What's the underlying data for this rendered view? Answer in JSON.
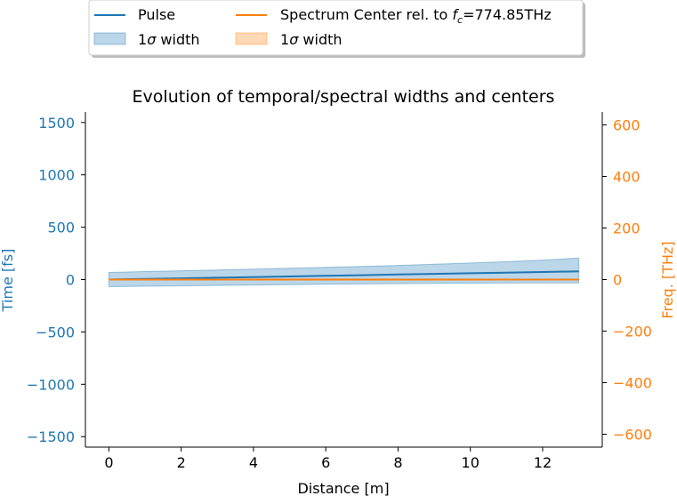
{
  "chart_data": {
    "type": "line",
    "title": "Evolution of temporal/spectral widths and centers",
    "xlabel": "Distance [m]",
    "ylabel_left": "Time [fs]",
    "ylabel_right": "Freq. [THz]",
    "xlim": [
      -0.65,
      13.65
    ],
    "ylim_left": [
      -1600,
      1600
    ],
    "ylim_right": [
      -650,
      650
    ],
    "x_ticks": [
      0,
      2,
      4,
      6,
      8,
      10,
      12
    ],
    "y_left_ticks": [
      -1500,
      -1000,
      -500,
      0,
      500,
      1000,
      1500
    ],
    "y_right_ticks": [
      -600,
      -400,
      -200,
      0,
      200,
      400,
      600
    ],
    "grid": false,
    "legend_placement": "top-center, above the axes",
    "colors": {
      "pulse": "#1f77b4",
      "spectrum": "#ff7f0e",
      "left_axis": "#1f77b4",
      "right_axis": "#ff7f0e"
    },
    "legend": [
      {
        "label": "Pulse",
        "kind": "line",
        "series": "pulse"
      },
      {
        "label": "Spectrum Center rel. to ",
        "math": "f",
        "sub": "c",
        "suffix": "=774.85THz",
        "kind": "line",
        "series": "spectrum"
      },
      {
        "label": "1",
        "math": "σ",
        "suffix": " width",
        "kind": "band",
        "series": "pulse"
      },
      {
        "label": "1",
        "math": "σ",
        "suffix": " width",
        "kind": "band",
        "series": "spectrum"
      }
    ],
    "series": [
      {
        "name": "Pulse",
        "axis": "left",
        "x": [
          0,
          1,
          2,
          3,
          4,
          5,
          6,
          7,
          8,
          9,
          10,
          11,
          12,
          13
        ],
        "center": [
          0,
          6,
          12,
          18,
          24,
          30,
          36,
          42,
          48,
          54,
          60,
          66,
          72,
          78
        ],
        "upper": [
          68,
          76,
          84,
          92,
          100,
          108,
          116,
          125,
          135,
          146,
          158,
          171,
          186,
          205
        ],
        "lower": [
          -68,
          -64,
          -60,
          -56,
          -52,
          -48,
          -45,
          -42,
          -39,
          -36,
          -34,
          -33,
          -32,
          -31
        ]
      },
      {
        "name": "Spectrum Center rel. to f_c=774.85THz",
        "axis": "right",
        "x": [
          0,
          13
        ],
        "center": [
          0,
          0
        ],
        "upper": [
          1,
          1
        ],
        "lower": [
          -1,
          -1
        ]
      }
    ]
  }
}
